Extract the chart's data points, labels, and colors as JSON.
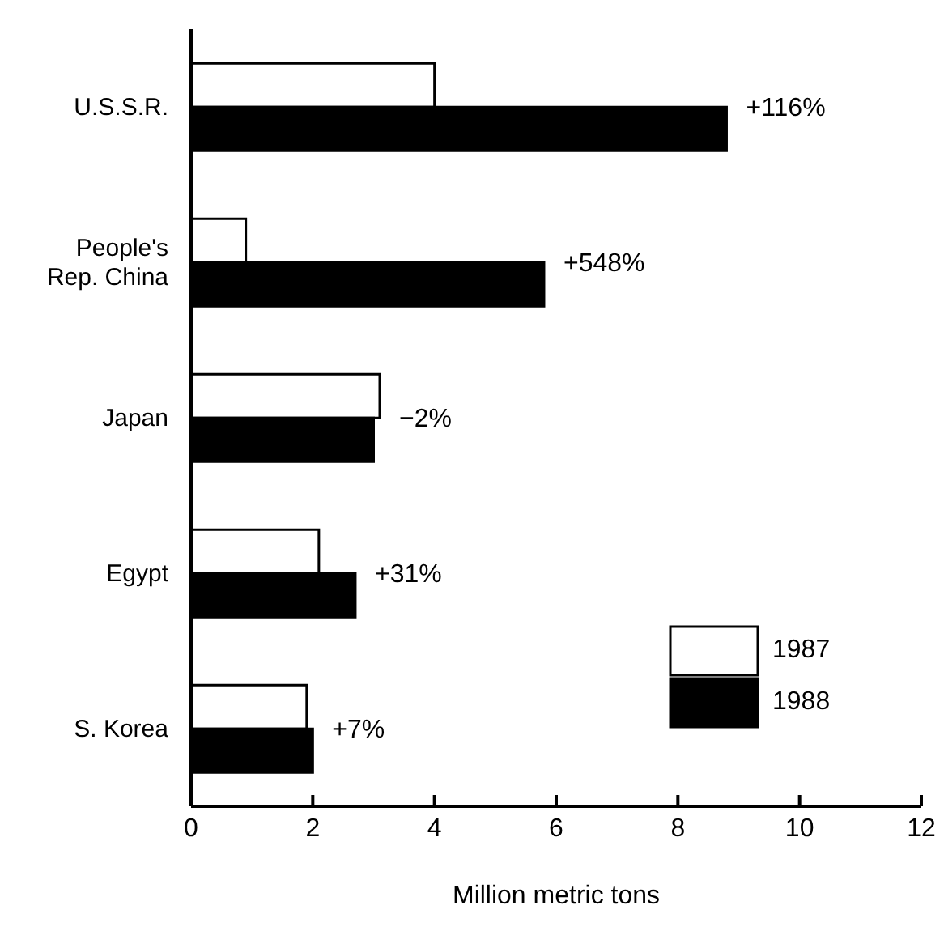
{
  "chart_data": {
    "type": "bar",
    "orientation": "horizontal",
    "xlabel": "Million metric tons",
    "categories": [
      "U.S.S.R.",
      "People's Rep. China",
      "Japan",
      "Egypt",
      "S. Korea"
    ],
    "series": [
      {
        "name": "1987",
        "color": "#ffffff",
        "values": [
          4.0,
          0.9,
          3.1,
          2.1,
          1.9
        ]
      },
      {
        "name": "1988",
        "color": "#000000",
        "values": [
          8.8,
          5.8,
          3.0,
          2.7,
          2.0
        ]
      }
    ],
    "xlim": [
      0,
      12
    ],
    "xticks": [
      0,
      2,
      4,
      6,
      8,
      10,
      12
    ],
    "grid": false,
    "legend": "bottom right",
    "annotations": [
      {
        "text": "+116%",
        "x": 8.8,
        "y": "U.S.S.R."
      },
      {
        "text": "+548%",
        "x": 5.8,
        "y": "People's Rep. China"
      },
      {
        "text": "−2%",
        "x": 3.1,
        "y": "Japan"
      },
      {
        "text": "+31%",
        "x": 2.7,
        "y": "Egypt"
      },
      {
        "text": "+7%",
        "x": 2.0,
        "y": "S. Korea"
      }
    ]
  }
}
